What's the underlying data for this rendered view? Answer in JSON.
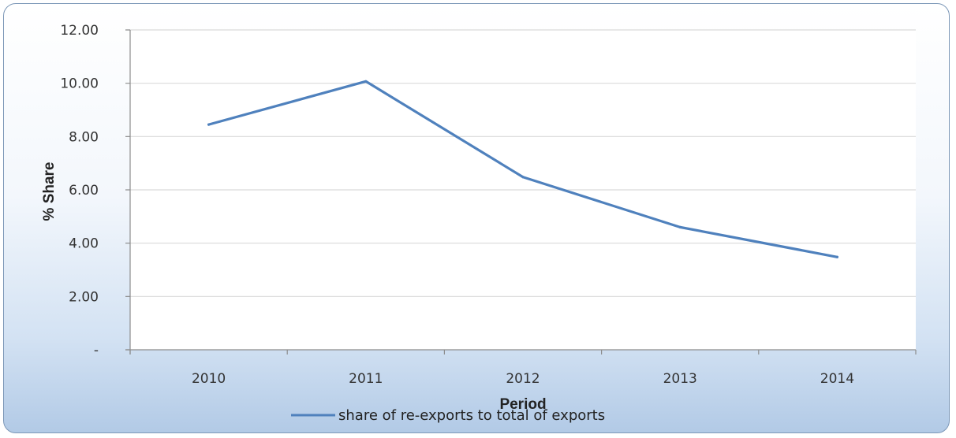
{
  "chart_data": {
    "type": "line",
    "title": "",
    "xlabel": "Period",
    "ylabel": "% Share",
    "categories": [
      "2010",
      "2011",
      "2012",
      "2013",
      "2014"
    ],
    "series": [
      {
        "name": "share of re-exports to total of exports",
        "values": [
          8.45,
          10.07,
          6.48,
          4.6,
          3.48
        ]
      }
    ],
    "ylim": [
      0,
      12
    ],
    "y_ticks": [
      {
        "value": 0,
        "label": "-"
      },
      {
        "value": 2,
        "label": "2.00"
      },
      {
        "value": 4,
        "label": "4.00"
      },
      {
        "value": 6,
        "label": "6.00"
      },
      {
        "value": 8,
        "label": "8.00"
      },
      {
        "value": 10,
        "label": "10.00"
      },
      {
        "value": 12,
        "label": "12.00"
      }
    ],
    "grid": true,
    "legend_position": "bottom",
    "line_color": "#4f81bd"
  }
}
